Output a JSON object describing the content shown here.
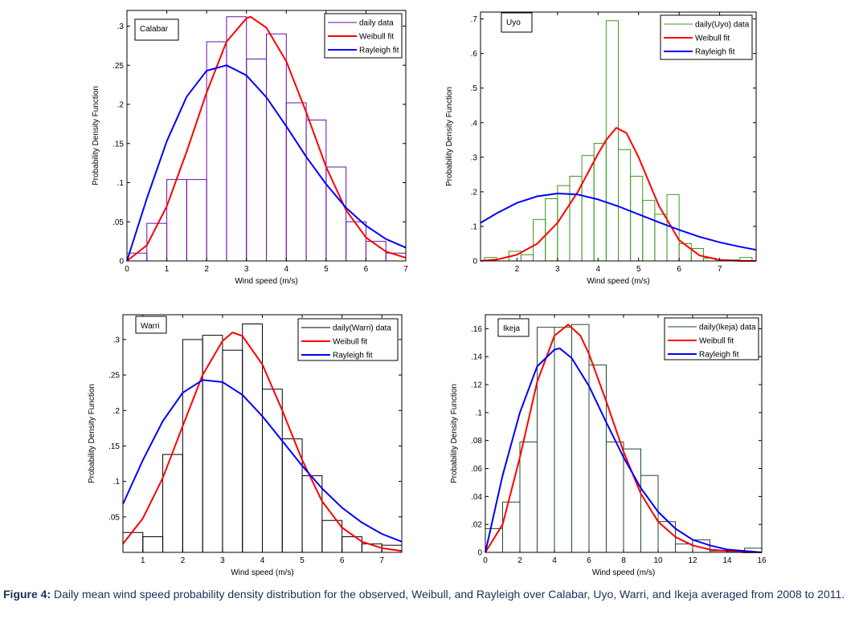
{
  "caption": {
    "label": "Figure 4:",
    "text": " Daily mean wind speed probability density distribution for the observed, Weibull, and Rayleigh over Calabar, Uyo, Warri, and Ikeja averaged from 2008 to 2011."
  },
  "colors": {
    "weibull": "#ff0000",
    "rayleigh": "#0000ff"
  },
  "chart_data": [
    {
      "type": "bar",
      "title": "Calabar",
      "xlabel": "Wind speed (m/s)",
      "ylabel": "Probability Density Function",
      "xlim": [
        0,
        7
      ],
      "ylim": [
        0,
        0.32
      ],
      "xticks": [
        0,
        1,
        2,
        3,
        4,
        5,
        6,
        7
      ],
      "yticks": [
        0,
        0.05,
        0.1,
        0.15,
        0.2,
        0.25,
        0.3
      ],
      "bar_color": "#6a0dad",
      "bin_edges": [
        0,
        0.5,
        1,
        1.5,
        2,
        2.5,
        3,
        3.5,
        4,
        4.5,
        5,
        5.5,
        6,
        6.5,
        7
      ],
      "values": [
        0.01,
        0.048,
        0.104,
        0.104,
        0.28,
        0.312,
        0.258,
        0.29,
        0.202,
        0.18,
        0.12,
        0.05,
        0.025,
        0.01
      ],
      "legend": [
        "daily data",
        "Weibull fit",
        "Rayleigh fit"
      ],
      "legend_position": "top-right",
      "series": [
        {
          "name": "Weibull fit",
          "x": [
            0,
            0.5,
            1,
            1.5,
            2,
            2.5,
            3,
            3.1,
            3.5,
            4,
            4.5,
            5,
            5.5,
            6,
            6.5,
            7
          ],
          "y": [
            0,
            0.02,
            0.07,
            0.14,
            0.215,
            0.28,
            0.31,
            0.312,
            0.298,
            0.255,
            0.19,
            0.12,
            0.065,
            0.03,
            0.012,
            0.004
          ]
        },
        {
          "name": "Rayleigh fit",
          "x": [
            0,
            0.5,
            1,
            1.5,
            2,
            2.5,
            3,
            3.5,
            4,
            4.5,
            5,
            5.5,
            6,
            6.5,
            7
          ],
          "y": [
            0,
            0.08,
            0.153,
            0.21,
            0.243,
            0.25,
            0.237,
            0.209,
            0.172,
            0.133,
            0.098,
            0.068,
            0.045,
            0.028,
            0.017
          ]
        }
      ]
    },
    {
      "type": "bar",
      "title": "Uyo",
      "xlabel": "Wind speed (m/s)",
      "ylabel": "Probability Density Function",
      "xlim": [
        1.1,
        7.9
      ],
      "ylim": [
        0,
        0.72
      ],
      "xticks": [
        2,
        3,
        4,
        5,
        6,
        7
      ],
      "yticks": [
        0,
        0.1,
        0.2,
        0.3,
        0.4,
        0.5,
        0.6,
        0.7
      ],
      "bar_color": "#3a9a1a",
      "bin_edges": [
        1.2,
        1.5,
        1.8,
        2.1,
        2.4,
        2.7,
        3.0,
        3.3,
        3.6,
        3.9,
        4.2,
        4.5,
        4.8,
        5.1,
        5.4,
        5.7,
        6.0,
        6.3,
        6.6,
        6.9,
        7.2,
        7.5,
        7.8
      ],
      "values": [
        0.01,
        0.0,
        0.028,
        0.018,
        0.12,
        0.18,
        0.218,
        0.245,
        0.305,
        0.34,
        0.695,
        0.322,
        0.245,
        0.175,
        0.135,
        0.192,
        0.05,
        0.036,
        0.008,
        0.003,
        0.003,
        0.01
      ],
      "legend": [
        "daily(Uyo) data",
        "Weibull fit",
        "Rayleigh fit"
      ],
      "legend_position": "top-right",
      "series": [
        {
          "name": "Weibull fit",
          "x": [
            1.1,
            1.5,
            2,
            2.5,
            3,
            3.5,
            4,
            4.2,
            4.45,
            4.7,
            5,
            5.5,
            6,
            6.5,
            7,
            7.5,
            7.9
          ],
          "y": [
            0.0,
            0.004,
            0.018,
            0.05,
            0.11,
            0.2,
            0.31,
            0.35,
            0.385,
            0.37,
            0.3,
            0.16,
            0.06,
            0.016,
            0.003,
            0.0,
            0.0
          ]
        },
        {
          "name": "Rayleigh fit",
          "x": [
            1.1,
            1.5,
            2,
            2.5,
            3,
            3.5,
            4,
            4.5,
            5,
            5.5,
            6,
            6.5,
            7,
            7.5,
            7.9
          ],
          "y": [
            0.11,
            0.138,
            0.168,
            0.187,
            0.195,
            0.192,
            0.178,
            0.158,
            0.135,
            0.112,
            0.09,
            0.07,
            0.054,
            0.041,
            0.032
          ]
        }
      ]
    },
    {
      "type": "bar",
      "title": "Warri",
      "xlabel": "Wind speed (m/s)",
      "ylabel": "Probability Density Function",
      "xlim": [
        0.5,
        7.5
      ],
      "ylim": [
        0,
        0.335
      ],
      "xticks": [
        1,
        2,
        3,
        4,
        5,
        6,
        7
      ],
      "yticks": [
        0.05,
        0.1,
        0.15,
        0.2,
        0.25,
        0.3
      ],
      "bar_color": "#000000",
      "bin_edges": [
        0.5,
        1.0,
        1.5,
        2.0,
        2.5,
        3.0,
        3.5,
        4.0,
        4.5,
        5.0,
        5.5,
        6.0,
        6.5,
        7.0,
        7.5
      ],
      "values": [
        0.028,
        0.022,
        0.138,
        0.3,
        0.306,
        0.285,
        0.322,
        0.23,
        0.16,
        0.108,
        0.045,
        0.022,
        0.012,
        0.01
      ],
      "legend": [
        "daily(Warri) data",
        "Weibull fit",
        "Rayleigh fit"
      ],
      "legend_position": "top-right",
      "series": [
        {
          "name": "Weibull fit",
          "x": [
            0.5,
            1,
            1.5,
            2,
            2.5,
            3,
            3.25,
            3.5,
            4,
            4.5,
            5,
            5.5,
            6,
            6.5,
            7,
            7.5
          ],
          "y": [
            0.012,
            0.048,
            0.105,
            0.178,
            0.25,
            0.298,
            0.31,
            0.305,
            0.265,
            0.2,
            0.13,
            0.072,
            0.035,
            0.015,
            0.006,
            0.002
          ]
        },
        {
          "name": "Rayleigh fit",
          "x": [
            0.5,
            1,
            1.5,
            2,
            2.5,
            3,
            3.5,
            4,
            4.5,
            5,
            5.5,
            6,
            6.5,
            7,
            7.5
          ],
          "y": [
            0.068,
            0.13,
            0.185,
            0.225,
            0.243,
            0.24,
            0.222,
            0.192,
            0.157,
            0.122,
            0.09,
            0.063,
            0.042,
            0.026,
            0.015
          ]
        }
      ]
    },
    {
      "type": "bar",
      "title": "Ikeja",
      "xlabel": "Wind speed (m/s)",
      "ylabel": "Probability Density Function",
      "xlim": [
        0,
        16
      ],
      "ylim": [
        0,
        0.17
      ],
      "xticks": [
        0,
        2,
        4,
        6,
        8,
        10,
        12,
        14,
        16
      ],
      "yticks": [
        0,
        0.02,
        0.04,
        0.06,
        0.08,
        0.1,
        0.12,
        0.14,
        0.16
      ],
      "bar_color": "#1f4a2a",
      "bin_edges": [
        0,
        1,
        2,
        3,
        4,
        5,
        6,
        7,
        8,
        9,
        10,
        11,
        12,
        13,
        14,
        15,
        16
      ],
      "values": [
        0.017,
        0.036,
        0.079,
        0.161,
        0.161,
        0.163,
        0.134,
        0.079,
        0.074,
        0.055,
        0.022,
        0.006,
        0.009,
        0.001,
        0.001,
        0.003
      ],
      "legend": [
        "daily(Ikeja) data",
        "Weibull fit",
        "Rayleigh fit"
      ],
      "legend_position": "top-right",
      "series": [
        {
          "name": "Weibull fit",
          "x": [
            0,
            1,
            2,
            3,
            4,
            4.8,
            5.5,
            6,
            7,
            8,
            9,
            10,
            11,
            12,
            13,
            14,
            15,
            16
          ],
          "y": [
            0,
            0.02,
            0.068,
            0.122,
            0.155,
            0.163,
            0.155,
            0.142,
            0.108,
            0.072,
            0.042,
            0.022,
            0.011,
            0.005,
            0.002,
            0.001,
            0.0,
            0.0
          ]
        },
        {
          "name": "Rayleigh fit",
          "x": [
            0,
            1,
            2,
            3,
            4,
            4.3,
            5,
            6,
            7,
            8,
            9,
            10,
            11,
            12,
            13,
            14,
            15,
            16
          ],
          "y": [
            0,
            0.055,
            0.1,
            0.133,
            0.145,
            0.146,
            0.139,
            0.119,
            0.093,
            0.068,
            0.046,
            0.029,
            0.017,
            0.009,
            0.005,
            0.002,
            0.001,
            0.0
          ]
        }
      ]
    }
  ]
}
